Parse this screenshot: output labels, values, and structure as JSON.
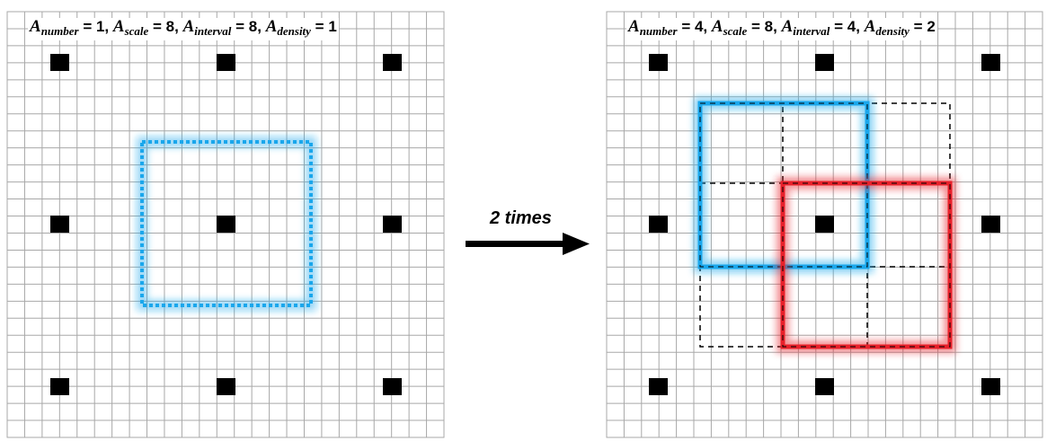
{
  "grid": {
    "line_color": "#a8a8a8",
    "cells": 25
  },
  "left_panel": {
    "caption": {
      "a": "A",
      "number_sub": "number",
      "number_val": " = 1, ",
      "a2": "A",
      "scale_sub": "scale",
      "scale_val": " = 8, ",
      "a3": "A",
      "interval_sub": "interval",
      "interval_val": " = 8, ",
      "a4": "A",
      "density_sub": "density",
      "density_val": " = 1"
    },
    "anchor_box_color": "#1aa7ec"
  },
  "right_panel": {
    "caption": {
      "a": "A",
      "number_sub": "number",
      "number_val": " = 4, ",
      "a2": "A",
      "scale_sub": "scale",
      "scale_val": " = 8, ",
      "a3": "A",
      "interval_sub": "interval",
      "interval_val": " = 4, ",
      "a4": "A",
      "density_sub": "density",
      "density_val": " = 2"
    },
    "blue_box_color": "#1aa7ec",
    "red_box_color": "#e8202a",
    "dashed_box_color": "#000000"
  },
  "arrow": {
    "label": "2 times"
  }
}
